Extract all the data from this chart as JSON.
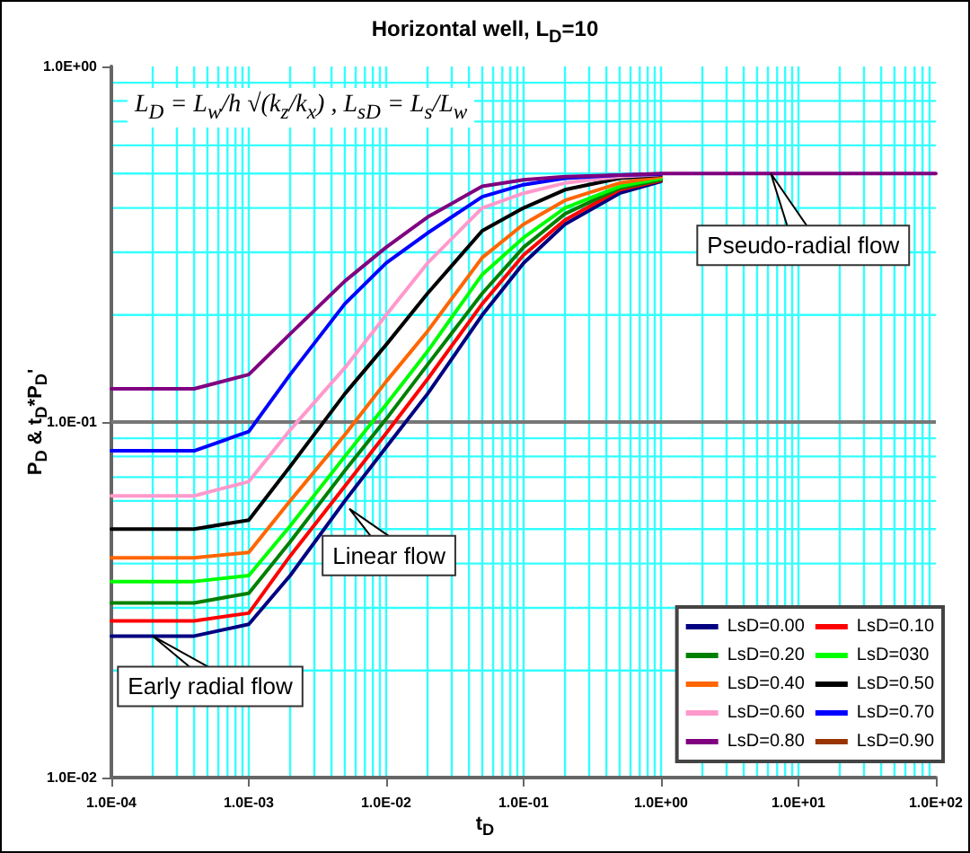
{
  "chart_data": {
    "type": "line",
    "title": "Horizontal well, L$_{D}$=10",
    "xlabel": "t$_{D}$",
    "ylabel": "P$_{D}$ & t$_{D}$*P$_{D}$'",
    "log": "xy",
    "grid": true,
    "legend": "bottom right",
    "xlim": [
      0.0001,
      100
    ],
    "ylim": [
      0.01,
      1
    ],
    "xticks": [
      {
        "value": 0.0001,
        "label": "1.0E-04"
      },
      {
        "value": 0.001,
        "label": "1.0E-03"
      },
      {
        "value": 0.01,
        "label": "1.0E-02"
      },
      {
        "value": 0.1,
        "label": "1.0E-01"
      },
      {
        "value": 1,
        "label": "1.0E+00"
      },
      {
        "value": 10,
        "label": "1.0E+01"
      },
      {
        "value": 100,
        "label": "1.0E+02"
      }
    ],
    "yticks": [
      {
        "value": 0.01,
        "label": "1.0E-02"
      },
      {
        "value": 0.1,
        "label": "1.0E-01"
      },
      {
        "value": 1,
        "label": "1.0E+00"
      }
    ],
    "x": [
      0.0001,
      0.0004,
      0.001,
      0.002,
      0.005,
      0.01,
      0.02,
      0.05,
      0.1,
      0.2,
      0.5,
      1,
      3,
      100
    ],
    "series": [
      {
        "name": "LsD=0.00",
        "color": "#000080",
        "values": [
          0.025,
          0.025,
          0.027,
          0.037,
          0.06,
          0.085,
          0.12,
          0.2,
          0.28,
          0.36,
          0.44,
          0.475,
          null,
          null
        ]
      },
      {
        "name": "LsD=0.10",
        "color": "#ff0000",
        "values": [
          0.0276,
          0.0276,
          0.029,
          0.042,
          0.066,
          0.093,
          0.132,
          0.215,
          0.295,
          0.37,
          0.45,
          0.478,
          null,
          null
        ]
      },
      {
        "name": "LsD=0.20",
        "color": "#008000",
        "values": [
          0.031,
          0.031,
          0.033,
          0.046,
          0.073,
          0.102,
          0.145,
          0.23,
          0.31,
          0.385,
          0.455,
          0.48,
          null,
          null
        ]
      },
      {
        "name": "LsD=030",
        "color": "#00ff00",
        "values": [
          0.0356,
          0.0356,
          0.037,
          0.051,
          0.08,
          0.112,
          0.158,
          0.26,
          0.33,
          0.4,
          0.46,
          0.485,
          null,
          null
        ]
      },
      {
        "name": "LsD=0.40",
        "color": "#ff6600",
        "values": [
          0.0415,
          0.0415,
          0.043,
          0.06,
          0.092,
          0.13,
          0.18,
          0.29,
          0.36,
          0.42,
          0.47,
          0.49,
          null,
          null
        ]
      },
      {
        "name": "LsD=0.50",
        "color": "#000000",
        "values": [
          0.05,
          0.05,
          0.053,
          0.075,
          0.12,
          0.165,
          0.23,
          0.345,
          0.4,
          0.45,
          0.485,
          0.495,
          null,
          null
        ]
      },
      {
        "name": "LsD=0.60",
        "color": "#ff99cc",
        "values": [
          0.062,
          0.062,
          0.068,
          0.095,
          0.142,
          0.2,
          0.28,
          0.4,
          0.44,
          0.47,
          0.49,
          0.497,
          null,
          null
        ]
      },
      {
        "name": "LsD=0.70",
        "color": "#0000ff",
        "values": [
          0.083,
          0.083,
          0.094,
          0.136,
          0.215,
          0.28,
          0.34,
          0.43,
          0.465,
          0.485,
          0.495,
          0.498,
          null,
          null
        ]
      },
      {
        "name": "LsD=0.80",
        "color": "#800080",
        "values": [
          0.124,
          0.124,
          0.136,
          0.177,
          0.249,
          0.31,
          0.377,
          0.46,
          0.48,
          0.49,
          0.495,
          0.5,
          0.5,
          0.5
        ]
      },
      {
        "name": "LsD=0.90",
        "color": "#993300",
        "values": [
          null,
          null,
          null,
          null,
          null,
          null,
          null,
          null,
          null,
          null,
          null,
          null,
          null,
          null
        ]
      }
    ],
    "annotations": [
      "L$_{D}$ = L$_{w}$/h √(k$_{z}$/k$_{x}$) ,  L$_{sD}$ = L$_{s}$/L$_{w}$",
      {
        "text": "Pseudo-radial flow",
        "x": 6.3,
        "y": 0.5
      },
      {
        "text": "Linear flow",
        "x": 0.0054,
        "y": 0.057
      },
      {
        "text": "Early radial flow",
        "x": 0.0002,
        "y": 0.025
      }
    ],
    "ref_lines": [
      {
        "axis": "y",
        "value": 0.1,
        "color": "#777777"
      }
    ]
  }
}
